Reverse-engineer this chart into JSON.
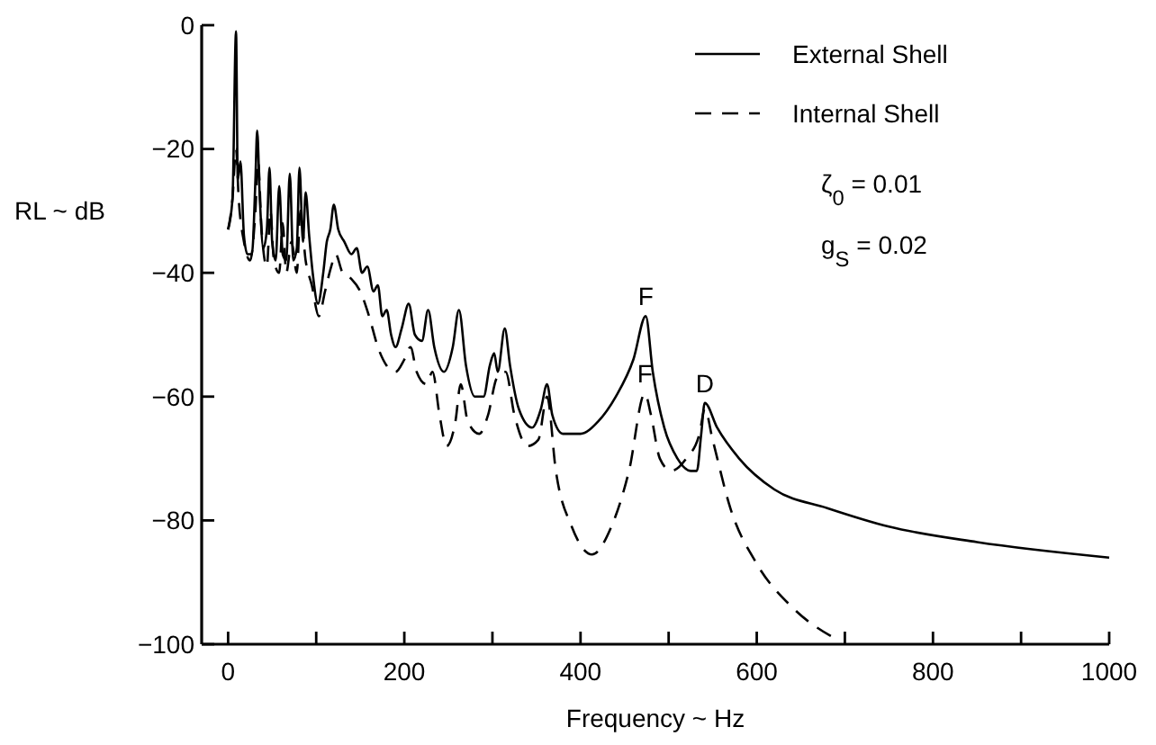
{
  "chart_data": {
    "type": "line",
    "xlabel": "Frequency ~ Hz",
    "ylabel": "RL ~ dB",
    "xlim": [
      -30,
      1000
    ],
    "ylim": [
      -100,
      0
    ],
    "xticks": [
      0,
      {
        "value": 100,
        "label": null
      },
      200,
      {
        "value": 300,
        "label": null
      },
      400,
      {
        "value": 500,
        "label": null
      },
      600,
      {
        "value": 700,
        "label": null
      },
      800,
      {
        "value": 900,
        "label": null
      },
      1000
    ],
    "yticks": [
      -100,
      -80,
      -60,
      -40,
      -20,
      0
    ],
    "grid": false,
    "legend": "top right",
    "x": [
      0,
      5,
      9,
      11,
      14,
      18,
      22,
      27,
      31,
      33,
      36,
      40,
      44,
      47,
      50,
      54,
      58,
      62,
      66,
      70,
      74,
      78,
      81,
      85,
      88,
      92,
      96,
      102,
      108,
      112,
      116,
      120,
      125,
      132,
      140,
      146,
      152,
      158,
      165,
      170,
      175,
      180,
      185,
      190,
      197,
      205,
      212,
      220,
      227,
      234,
      245,
      255,
      262,
      270,
      280,
      290,
      297,
      302,
      306,
      314,
      320,
      330,
      345,
      355,
      362,
      368,
      380,
      400,
      420,
      440,
      460,
      474,
      482,
      495,
      510,
      525,
      532,
      537,
      541,
      555,
      580,
      620,
      680,
      750,
      850,
      1000
    ],
    "series": [
      {
        "name": "External Shell",
        "color": "#000000",
        "line_style": "solid",
        "values": [
          -33,
          -28,
          -1,
          -25,
          -22,
          -34,
          -37,
          -37,
          -25,
          -17,
          -28,
          -36,
          -33,
          -23,
          -35,
          -38,
          -26,
          -37,
          -38,
          -24,
          -38,
          -36,
          -23,
          -35,
          -27,
          -34,
          -40,
          -45,
          -40,
          -35,
          -33,
          -29,
          -33,
          -35,
          -37,
          -36,
          -40,
          -39,
          -43,
          -42,
          -47,
          -46,
          -50,
          -52,
          -49,
          -45,
          -50,
          -51,
          -46,
          -52,
          -56,
          -52,
          -46,
          -55,
          -60,
          -60,
          -55,
          -53,
          -56,
          -49,
          -55,
          -62,
          -65,
          -62,
          -58,
          -63,
          -66,
          -66,
          -64,
          -60,
          -54,
          -47,
          -56,
          -65,
          -70,
          -72,
          -72,
          -66,
          -61,
          -65,
          -70,
          -75,
          -78,
          -81,
          -83.5,
          -86
        ]
      },
      {
        "name": "Internal Shell",
        "color": "#000000",
        "line_style": "dashed",
        "x": [
          0,
          5,
          9,
          12,
          18,
          25,
          31,
          34,
          38,
          44,
          48,
          52,
          58,
          62,
          66,
          72,
          78,
          82,
          88,
          95,
          103,
          110,
          117,
          122,
          130,
          140,
          150,
          160,
          170,
          180,
          190,
          200,
          207,
          214,
          225,
          232,
          240,
          248,
          258,
          264,
          272,
          285,
          295,
          305,
          315,
          325,
          340,
          352,
          362,
          372,
          390,
          413,
          435,
          455,
          473,
          480,
          490,
          503,
          520,
          535,
          541,
          550,
          570,
          600,
          640,
          694
        ],
        "values": [
          -33,
          -28,
          -20,
          -28,
          -35,
          -38,
          -30,
          -22,
          -33,
          -39,
          -30,
          -38,
          -40,
          -32,
          -40,
          -35,
          -40,
          -30,
          -38,
          -42,
          -47,
          -43,
          -39,
          -37,
          -40,
          -41,
          -43,
          -47,
          -52,
          -55,
          -56,
          -54,
          -52,
          -56,
          -58,
          -56,
          -63,
          -68,
          -64,
          -58,
          -64,
          -66,
          -63,
          -57,
          -56,
          -63,
          -68,
          -67,
          -60,
          -72,
          -81,
          -85.5,
          -81,
          -72,
          -59.5,
          -63,
          -70,
          -72,
          -70,
          -66,
          -62,
          -67,
          -78,
          -87,
          -94,
          -99.5
        ]
      }
    ],
    "annotations": [
      {
        "text": "F",
        "x": 474,
        "y": -47
      },
      {
        "text": "F",
        "x": 473,
        "y": -59.5
      },
      {
        "text": "D",
        "x": 541,
        "y": -61
      },
      "ζ$_{0}$ = 0.01",
      "g$_{S}$ = 0.02"
    ]
  }
}
